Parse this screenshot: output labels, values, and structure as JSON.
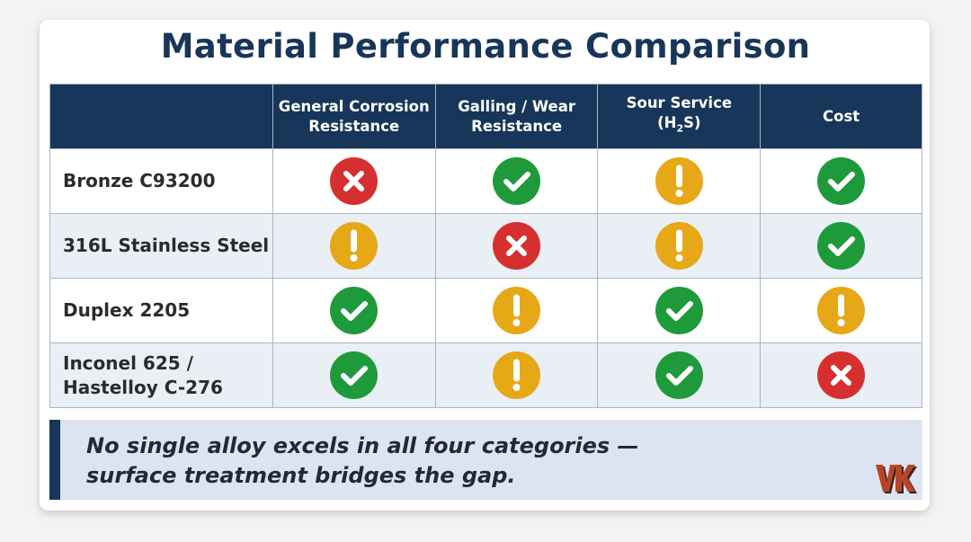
{
  "title": "Material Performance Comparison",
  "columns": [
    "",
    "General Corrosion Resistance",
    "Galling / Wear Resistance",
    "Sour Service (H₂S)",
    "Cost"
  ],
  "rows": [
    {
      "name": "Bronze C93200",
      "ratings": [
        "x",
        "check",
        "warn",
        "check"
      ]
    },
    {
      "name": "316L Stainless Steel",
      "ratings": [
        "warn",
        "x",
        "warn",
        "check"
      ]
    },
    {
      "name": "Duplex 2205",
      "ratings": [
        "check",
        "warn",
        "check",
        "warn"
      ]
    },
    {
      "name": "Inconel 625 / Hastelloy C-276",
      "ratings": [
        "check",
        "warn",
        "check",
        "x"
      ]
    }
  ],
  "legend_icons": {
    "check": "check-circle-icon",
    "warn": "exclamation-circle-icon",
    "x": "x-circle-icon"
  },
  "colors": {
    "check": "#1f9a3a",
    "warn": "#e6a817",
    "x": "#d62f2f",
    "header": "#17365a"
  },
  "footer": {
    "line1": "No single alloy excels in all four categories —",
    "line2": "surface treatment bridges the gap."
  },
  "logo": {
    "text": "VK"
  }
}
